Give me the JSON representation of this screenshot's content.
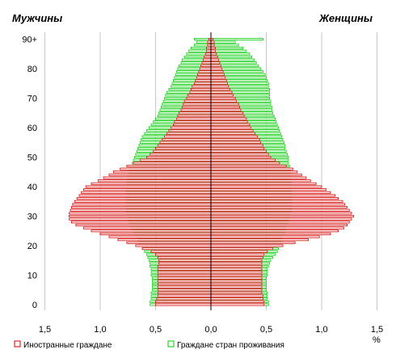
{
  "chart_data": {
    "type": "bar",
    "orientation": "horizontal-pyramid",
    "left_label": "Мужчины",
    "right_label": "Женщины",
    "x_unit": "%",
    "xlim": [
      -1.5,
      1.5
    ],
    "x_ticks": [
      -1.5,
      -1.0,
      -0.5,
      0,
      0.5,
      1.0,
      1.5
    ],
    "x_tick_labels": [
      "1,5",
      "1,0",
      "0,5",
      "0,0",
      "0,5",
      "1,0",
      "1,5"
    ],
    "y_ticks": [
      0,
      10,
      20,
      30,
      40,
      50,
      60,
      70,
      80,
      90
    ],
    "y_tick_labels": [
      "0",
      "10",
      "20",
      "30",
      "40",
      "50",
      "60",
      "70",
      "80",
      "90+"
    ],
    "grid": "vertical",
    "legend_position": "bottom",
    "ages": [
      0,
      1,
      2,
      3,
      4,
      5,
      6,
      7,
      8,
      9,
      10,
      11,
      12,
      13,
      14,
      15,
      16,
      17,
      18,
      19,
      20,
      21,
      22,
      23,
      24,
      25,
      26,
      27,
      28,
      29,
      30,
      31,
      32,
      33,
      34,
      35,
      36,
      37,
      38,
      39,
      40,
      41,
      42,
      43,
      44,
      45,
      46,
      47,
      48,
      49,
      50,
      51,
      52,
      53,
      54,
      55,
      56,
      57,
      58,
      59,
      60,
      61,
      62,
      63,
      64,
      65,
      66,
      67,
      68,
      69,
      70,
      71,
      72,
      73,
      74,
      75,
      76,
      77,
      78,
      79,
      80,
      81,
      82,
      83,
      84,
      85,
      86,
      87,
      88,
      89,
      90
    ],
    "series": [
      {
        "name": "Иностранные граждане",
        "color": "#d40000",
        "men": [
          0.5,
          0.5,
          0.49,
          0.48,
          0.48,
          0.48,
          0.48,
          0.48,
          0.48,
          0.48,
          0.48,
          0.48,
          0.48,
          0.48,
          0.47,
          0.47,
          0.48,
          0.5,
          0.54,
          0.62,
          0.68,
          0.76,
          0.84,
          0.92,
          1.0,
          1.08,
          1.15,
          1.22,
          1.26,
          1.28,
          1.28,
          1.28,
          1.27,
          1.26,
          1.25,
          1.23,
          1.21,
          1.19,
          1.17,
          1.15,
          1.13,
          1.08,
          1.02,
          0.97,
          0.92,
          0.88,
          0.82,
          0.76,
          0.7,
          0.64,
          0.58,
          0.55,
          0.52,
          0.5,
          0.48,
          0.46,
          0.44,
          0.42,
          0.4,
          0.38,
          0.36,
          0.34,
          0.33,
          0.31,
          0.3,
          0.29,
          0.27,
          0.26,
          0.25,
          0.24,
          0.22,
          0.21,
          0.19,
          0.18,
          0.17,
          0.15,
          0.14,
          0.13,
          0.12,
          0.11,
          0.1,
          0.09,
          0.08,
          0.07,
          0.06,
          0.05,
          0.04,
          0.04,
          0.03,
          0.03,
          0.02
        ],
        "women": [
          0.48,
          0.48,
          0.47,
          0.47,
          0.46,
          0.46,
          0.46,
          0.46,
          0.46,
          0.46,
          0.46,
          0.46,
          0.46,
          0.46,
          0.46,
          0.46,
          0.47,
          0.48,
          0.51,
          0.56,
          0.65,
          0.76,
          0.88,
          0.98,
          1.08,
          1.15,
          1.2,
          1.23,
          1.25,
          1.27,
          1.29,
          1.27,
          1.25,
          1.23,
          1.21,
          1.19,
          1.15,
          1.12,
          1.08,
          1.04,
          1.0,
          0.95,
          0.9,
          0.86,
          0.82,
          0.78,
          0.74,
          0.68,
          0.62,
          0.58,
          0.54,
          0.52,
          0.5,
          0.48,
          0.47,
          0.45,
          0.44,
          0.42,
          0.4,
          0.38,
          0.36,
          0.35,
          0.33,
          0.32,
          0.3,
          0.29,
          0.27,
          0.26,
          0.25,
          0.23,
          0.22,
          0.2,
          0.19,
          0.17,
          0.16,
          0.15,
          0.14,
          0.13,
          0.12,
          0.11,
          0.1,
          0.09,
          0.08,
          0.07,
          0.06,
          0.05,
          0.04,
          0.04,
          0.03,
          0.03,
          0.02
        ]
      },
      {
        "name": "Граждане стран проживания",
        "color": "#00cc00",
        "men": [
          0.55,
          0.55,
          0.54,
          0.54,
          0.54,
          0.53,
          0.53,
          0.53,
          0.53,
          0.53,
          0.54,
          0.54,
          0.54,
          0.55,
          0.55,
          0.56,
          0.57,
          0.58,
          0.6,
          0.62,
          0.63,
          0.65,
          0.66,
          0.68,
          0.69,
          0.71,
          0.72,
          0.73,
          0.74,
          0.75,
          0.76,
          0.76,
          0.77,
          0.77,
          0.77,
          0.77,
          0.77,
          0.77,
          0.77,
          0.77,
          0.77,
          0.76,
          0.76,
          0.75,
          0.75,
          0.74,
          0.73,
          0.72,
          0.71,
          0.7,
          0.69,
          0.68,
          0.67,
          0.66,
          0.65,
          0.64,
          0.63,
          0.62,
          0.6,
          0.58,
          0.56,
          0.54,
          0.52,
          0.5,
          0.48,
          0.47,
          0.46,
          0.45,
          0.44,
          0.43,
          0.42,
          0.41,
          0.4,
          0.38,
          0.36,
          0.35,
          0.34,
          0.33,
          0.32,
          0.31,
          0.3,
          0.29,
          0.27,
          0.26,
          0.24,
          0.22,
          0.2,
          0.18,
          0.15,
          0.13,
          0.15
        ],
        "women": [
          0.52,
          0.52,
          0.51,
          0.51,
          0.51,
          0.5,
          0.5,
          0.5,
          0.5,
          0.5,
          0.51,
          0.51,
          0.51,
          0.52,
          0.53,
          0.54,
          0.56,
          0.58,
          0.6,
          0.61,
          0.62,
          0.63,
          0.64,
          0.65,
          0.66,
          0.67,
          0.68,
          0.69,
          0.7,
          0.71,
          0.72,
          0.72,
          0.73,
          0.73,
          0.73,
          0.73,
          0.73,
          0.73,
          0.73,
          0.73,
          0.73,
          0.73,
          0.72,
          0.72,
          0.72,
          0.72,
          0.71,
          0.71,
          0.7,
          0.7,
          0.7,
          0.69,
          0.68,
          0.67,
          0.67,
          0.66,
          0.65,
          0.64,
          0.63,
          0.62,
          0.61,
          0.6,
          0.59,
          0.58,
          0.57,
          0.56,
          0.55,
          0.55,
          0.54,
          0.54,
          0.53,
          0.53,
          0.53,
          0.53,
          0.52,
          0.52,
          0.51,
          0.5,
          0.49,
          0.47,
          0.45,
          0.43,
          0.41,
          0.39,
          0.37,
          0.35,
          0.32,
          0.29,
          0.25,
          0.22,
          0.47
        ]
      }
    ]
  }
}
